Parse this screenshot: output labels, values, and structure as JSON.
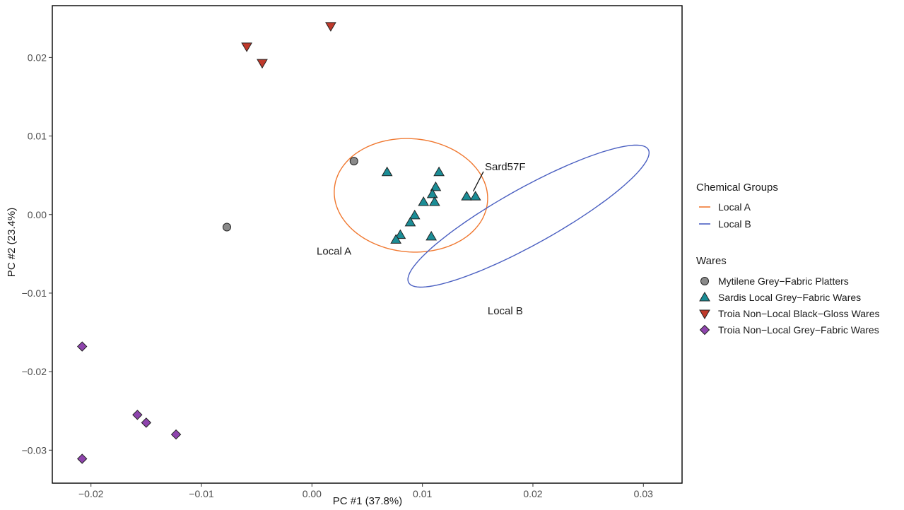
{
  "chart_data": {
    "type": "scatter",
    "title": "",
    "xlabel": "PC #1 (37.8%)",
    "ylabel": "PC #2 (23.4%)",
    "xlim": [
      -0.0235,
      0.0335
    ],
    "ylim": [
      -0.0342,
      0.0266
    ],
    "xticks": [
      -0.02,
      -0.01,
      0.0,
      0.01,
      0.02,
      0.03
    ],
    "xtick_labels": [
      "−0.02",
      "−0.01",
      "0.00",
      "0.01",
      "0.02",
      "0.03"
    ],
    "yticks": [
      -0.03,
      -0.02,
      -0.01,
      0.0,
      0.01,
      0.02
    ],
    "ytick_labels": [
      "−0.03",
      "−0.02",
      "−0.01",
      "0.00",
      "0.01",
      "0.02"
    ],
    "grid": false,
    "legend_placement": "right",
    "series": [
      {
        "name": "Mytilene Grey−Fabric Platters",
        "shape": "circle",
        "color": "#8a8a8a",
        "points": [
          [
            0.0038,
            0.0068
          ],
          [
            -0.0077,
            -0.0016
          ]
        ]
      },
      {
        "name": "Sardis Local Grey−Fabric Wares",
        "shape": "triangle-up",
        "color": "#1b8d96",
        "points": [
          [
            0.0068,
            0.0054
          ],
          [
            0.0115,
            0.0054
          ],
          [
            0.0112,
            0.0035
          ],
          [
            0.0109,
            0.0026
          ],
          [
            0.0111,
            0.0016
          ],
          [
            0.0101,
            0.0016
          ],
          [
            0.014,
            0.0023
          ],
          [
            0.0148,
            0.0023
          ],
          [
            0.0093,
            -0.0001
          ],
          [
            0.0089,
            -0.001
          ],
          [
            0.008,
            -0.0026
          ],
          [
            0.0076,
            -0.0032
          ],
          [
            0.0108,
            -0.0028
          ]
        ]
      },
      {
        "name": "Troia Non−Local Black−Gloss Wares",
        "shape": "triangle-down",
        "color": "#c0392b",
        "points": [
          [
            0.0017,
            0.024
          ],
          [
            -0.0059,
            0.0214
          ],
          [
            -0.0045,
            0.0193
          ]
        ]
      },
      {
        "name": "Troia Non−Local Grey−Fabric Wares",
        "shape": "diamond",
        "color": "#8e44ad",
        "points": [
          [
            -0.0208,
            -0.0168
          ],
          [
            -0.0158,
            -0.0255
          ],
          [
            -0.015,
            -0.0265
          ],
          [
            -0.0123,
            -0.028
          ],
          [
            -0.0208,
            -0.0311
          ]
        ]
      }
    ],
    "ellipses": [
      {
        "name": "Local A",
        "color": "#f07830",
        "center": [
          0.00896,
          0.00245
        ],
        "semi_axes": [
          0.00684,
          0.00733
        ],
        "rotation_deg": 27.0,
        "label": "Local A",
        "label_at": [
          0.002,
          -0.0051
        ]
      },
      {
        "name": "Local B",
        "color": "#4a5fc1",
        "center": [
          0.0196,
          -0.0002
        ],
        "semi_axes": [
          0.0138,
          0.00323
        ],
        "rotation_deg": 39.0,
        "label": "Local B",
        "label_at": [
          0.0175,
          -0.0127
        ]
      }
    ],
    "annotations": [
      {
        "text": "Sard57F",
        "at": [
          0.01565,
          0.00565
        ],
        "pointer_to": [
          0.0146,
          0.0026
        ]
      }
    ],
    "legends": [
      {
        "title": "Chemical Groups",
        "items": [
          "Local A",
          "Local B"
        ]
      },
      {
        "title": "Wares",
        "items": [
          "Mytilene Grey−Fabric Platters",
          "Sardis Local Grey−Fabric Wares",
          "Troia Non−Local Black−Gloss Wares",
          "Troia Non−Local Grey−Fabric Wares"
        ]
      }
    ]
  }
}
